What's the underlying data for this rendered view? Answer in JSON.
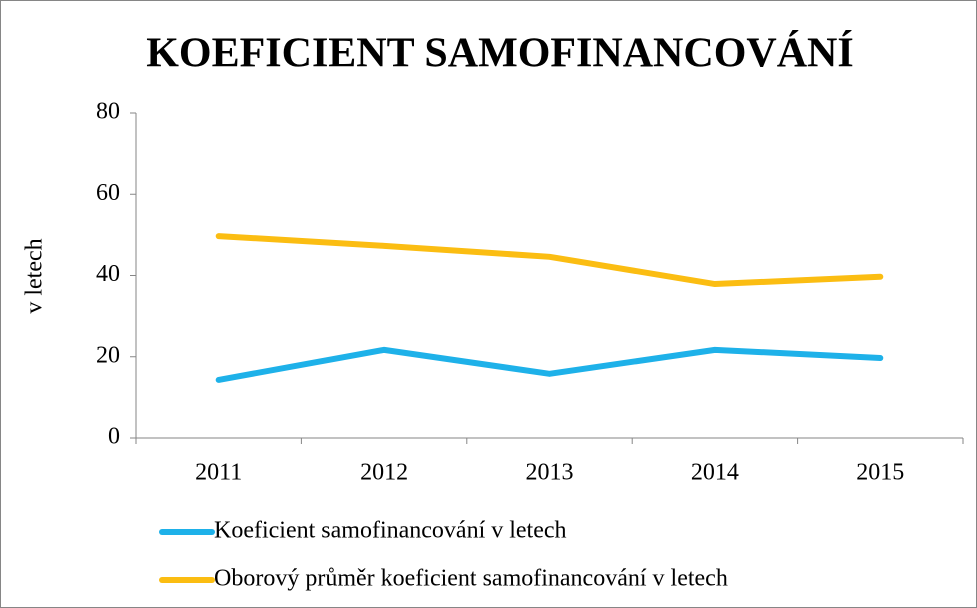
{
  "chart_data": {
    "type": "line",
    "title": "KOEFICIENT SAMOFINANCOVÁNÍ",
    "y_label": "v letech",
    "categories": [
      "2011",
      "2012",
      "2013",
      "2014",
      "2015"
    ],
    "series": [
      {
        "name": "Koeficient samofinancování v letech",
        "color": "#1eb1e9",
        "values": [
          14.3,
          21.7,
          15.8,
          21.7,
          19.7
        ]
      },
      {
        "name": "Oborový průměr koeficient samofinancování v letech",
        "color": "#fbbd12",
        "values": [
          49.7,
          47.3,
          44.6,
          37.9,
          39.7
        ]
      }
    ],
    "ylim": [
      0,
      80
    ],
    "yticks": [
      0,
      20,
      40,
      60,
      80
    ],
    "grid": false
  }
}
